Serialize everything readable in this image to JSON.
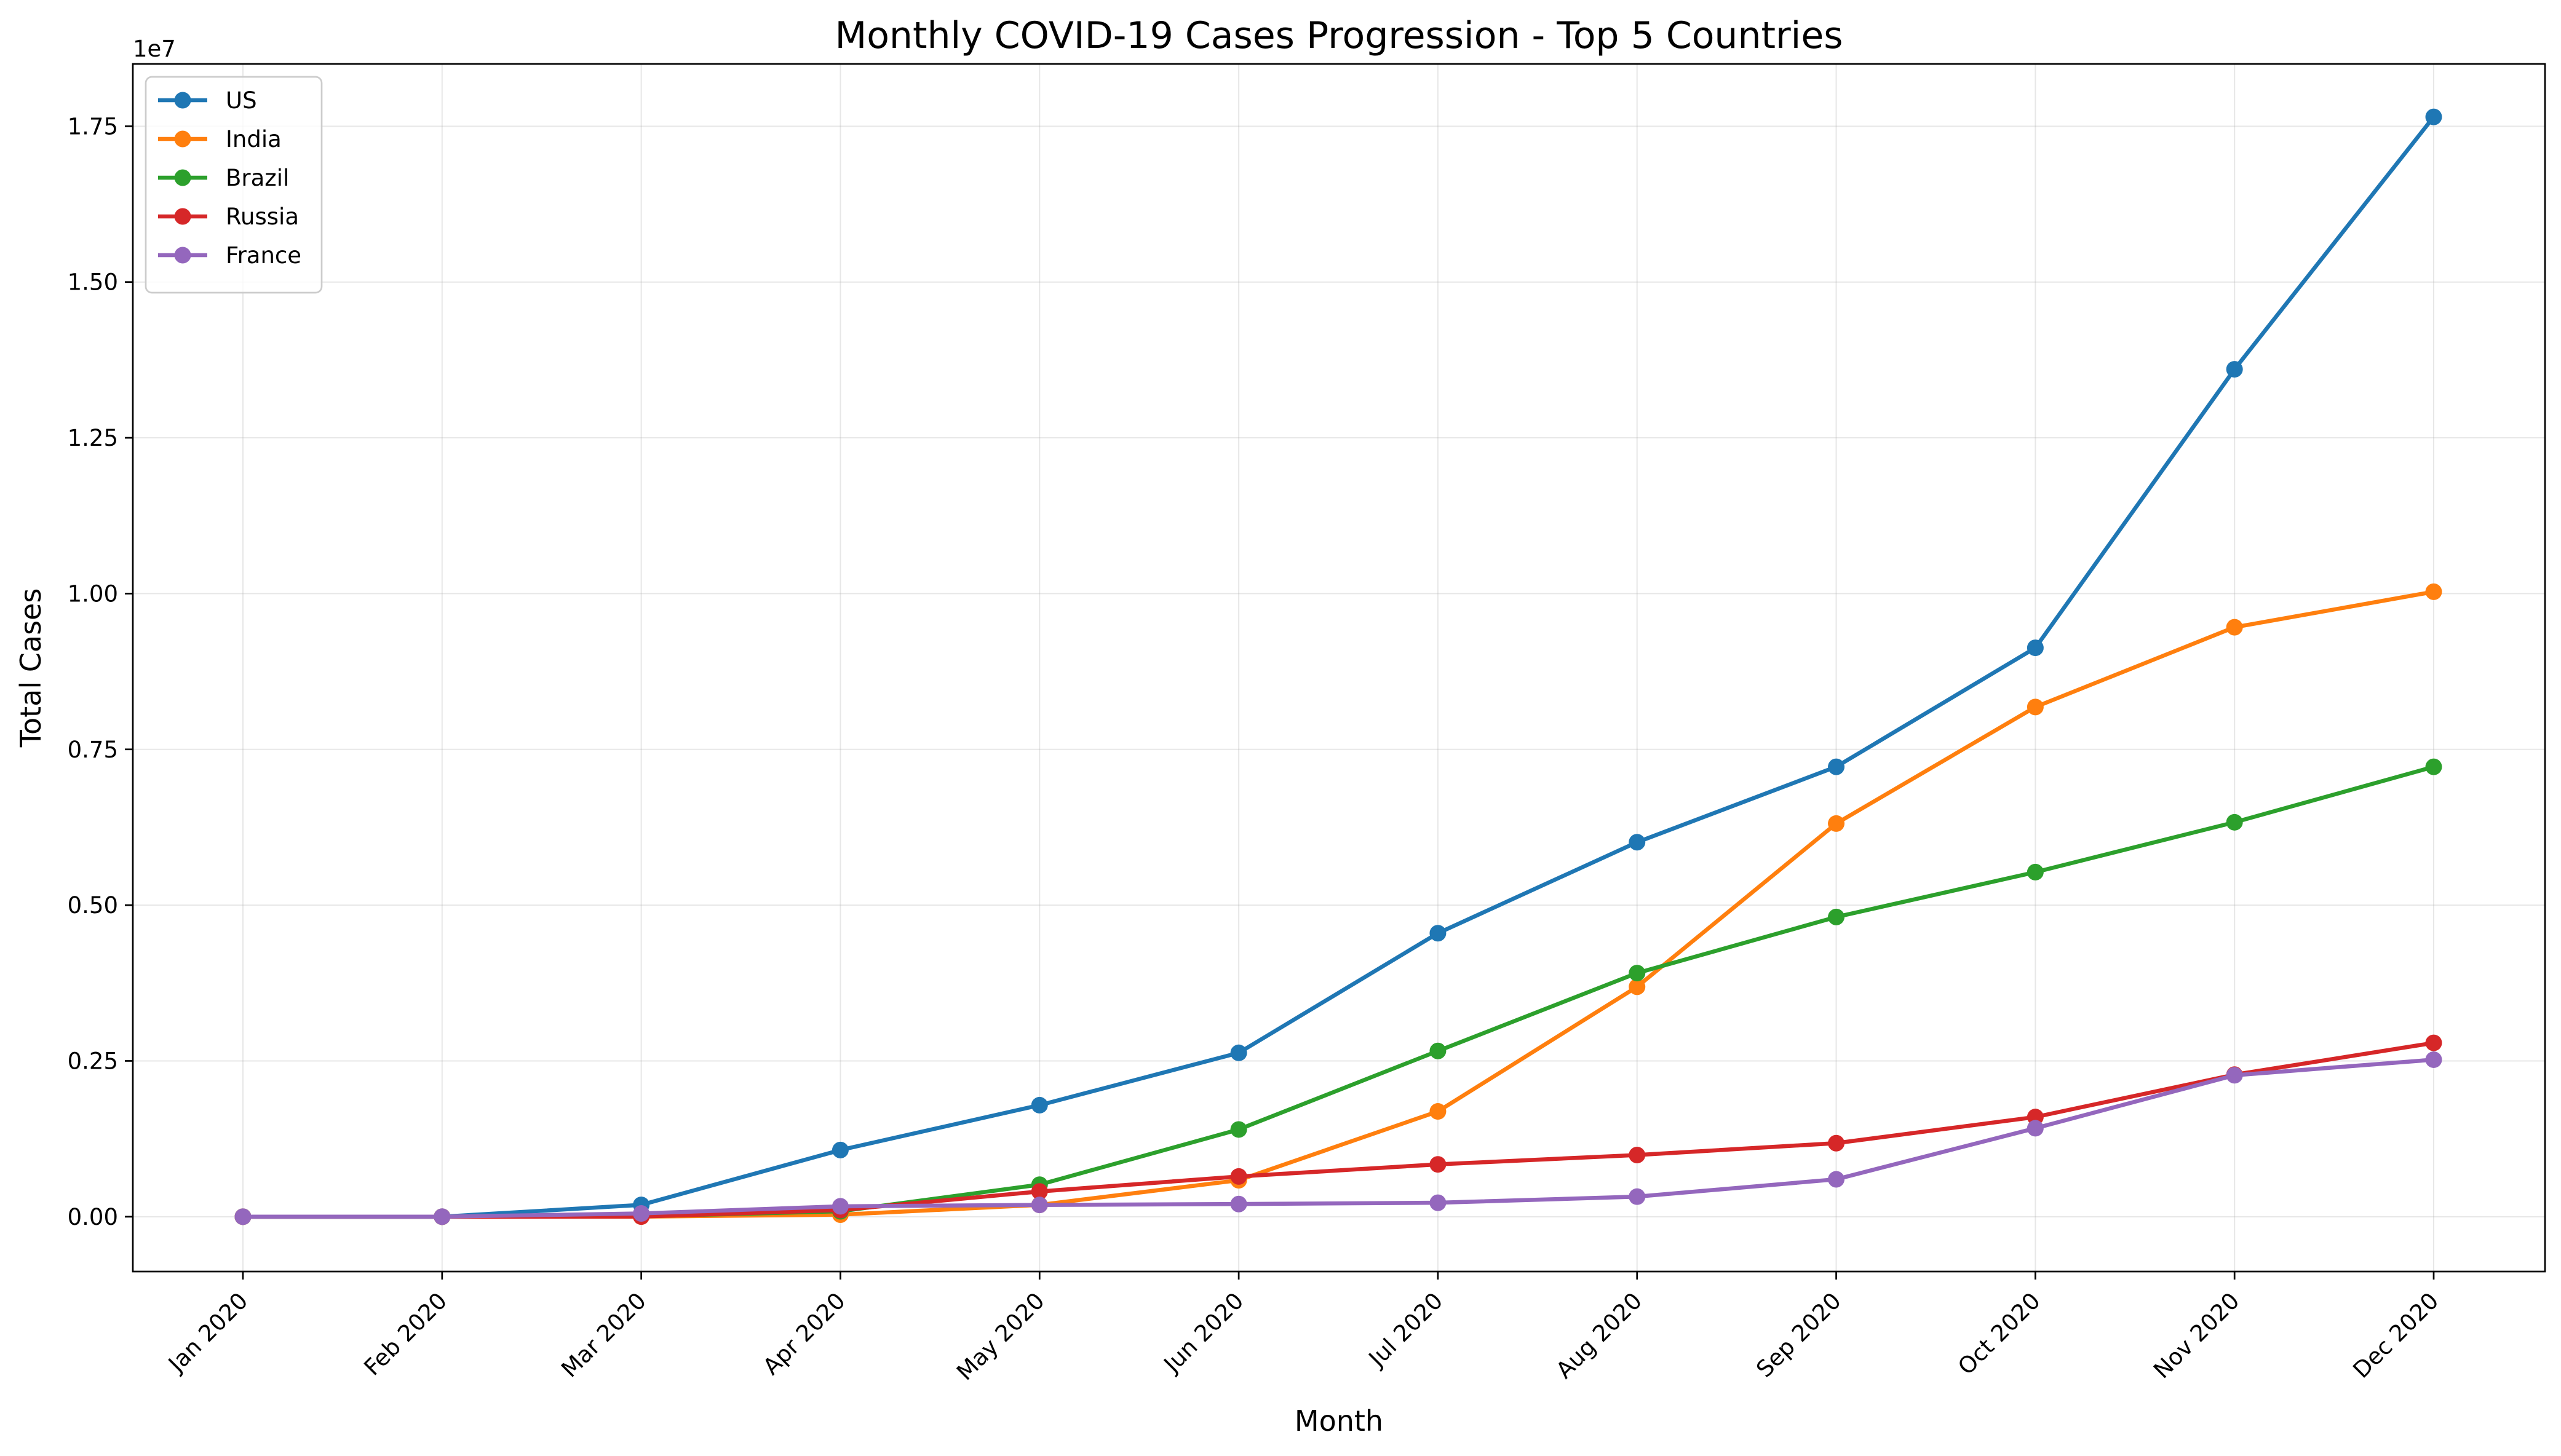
{
  "chart_data": {
    "type": "line",
    "title": "Monthly COVID-19 Cases Progression - Top 5 Countries",
    "xlabel": "Month",
    "ylabel": "Total Cases",
    "y_offset_label": "1e7",
    "categories": [
      "Jan 2020",
      "Feb 2020",
      "Mar 2020",
      "Apr 2020",
      "May 2020",
      "Jun 2020",
      "Jul 2020",
      "Aug 2020",
      "Sep 2020",
      "Oct 2020",
      "Nov 2020",
      "Dec 2020"
    ],
    "ylim": [
      -880000,
      18500000
    ],
    "yticks": [
      0,
      2500000,
      5000000,
      7500000,
      10000000,
      12500000,
      15000000,
      17500000
    ],
    "ytick_labels": [
      "0.00",
      "0.25",
      "0.50",
      "0.75",
      "1.00",
      "1.25",
      "1.50",
      "1.75"
    ],
    "grid": true,
    "legend_position": "top-left",
    "series": [
      {
        "name": "US",
        "color": "#1f77b4",
        "values": [
          5,
          25,
          190000,
          1070000,
          1790000,
          2630000,
          4550000,
          6010000,
          7220000,
          9130000,
          13600000,
          17650000
        ]
      },
      {
        "name": "India",
        "color": "#ff7f0e",
        "values": [
          1,
          3,
          1500,
          33000,
          190000,
          585000,
          1690000,
          3690000,
          6310000,
          8180000,
          9460000,
          10030000
        ]
      },
      {
        "name": "Brazil",
        "color": "#2ca02c",
        "values": [
          0,
          0,
          5700,
          87000,
          514000,
          1400000,
          2660000,
          3910000,
          4810000,
          5530000,
          6330000,
          7220000
        ]
      },
      {
        "name": "Russia",
        "color": "#d62728",
        "values": [
          2,
          2,
          2300,
          107000,
          405000,
          646000,
          840000,
          990000,
          1180000,
          1600000,
          2280000,
          2790000
        ]
      },
      {
        "name": "France",
        "color": "#9467bd",
        "values": [
          5,
          100,
          52000,
          167000,
          189000,
          203000,
          224000,
          322000,
          600000,
          1420000,
          2270000,
          2520000
        ]
      }
    ]
  }
}
